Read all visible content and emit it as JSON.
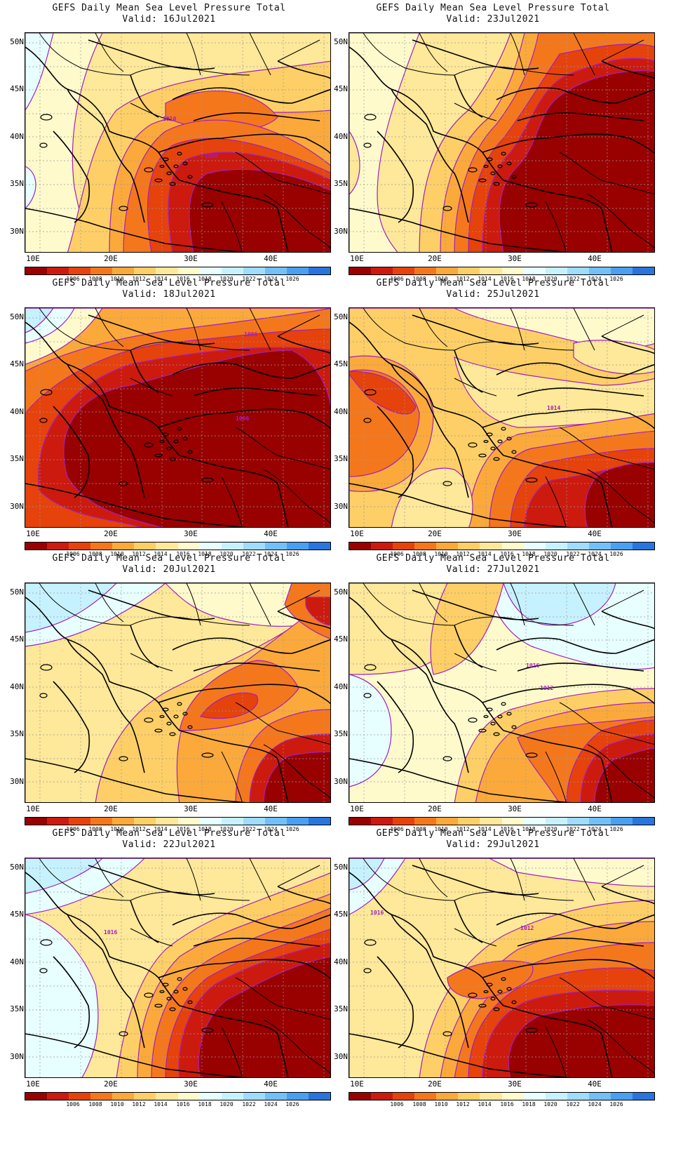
{
  "title": "GEFS Daily Mean Sea Level Pressure Total",
  "panels": [
    {
      "valid": "Valid: 16Jul2021",
      "contour_labels": [
        "1010",
        "1008"
      ]
    },
    {
      "valid": "Valid: 23Jul2021",
      "contour_labels": []
    },
    {
      "valid": "Valid: 18Jul2021",
      "contour_labels": [
        "1006",
        "1006"
      ]
    },
    {
      "valid": "Valid: 25Jul2021",
      "contour_labels": [
        "1014"
      ]
    },
    {
      "valid": "Valid: 20Jul2021",
      "contour_labels": []
    },
    {
      "valid": "Valid: 27Jul2021",
      "contour_labels": [
        "1016",
        "1012"
      ]
    },
    {
      "valid": "Valid: 22Jul2021",
      "contour_labels": [
        "1016"
      ]
    },
    {
      "valid": "Valid: 29Jul2021",
      "contour_labels": [
        "1016",
        "1012"
      ]
    }
  ],
  "lat_labels": [
    "50N",
    "45N",
    "40N",
    "35N",
    "30N"
  ],
  "lon_labels": [
    "10E",
    "20E",
    "30E",
    "40E"
  ],
  "colorbar": {
    "colors": [
      "#990000",
      "#cc1a0e",
      "#e6420c",
      "#f5771c",
      "#fba93b",
      "#fdcf66",
      "#fee899",
      "#fffacc",
      "#e8ffff",
      "#c6f2ff",
      "#9fdcfd",
      "#72c0f7",
      "#4a9ff0",
      "#2a74dd"
    ],
    "labels": [
      "1006",
      "1008",
      "1010",
      "1012",
      "1014",
      "1016",
      "1018",
      "1020",
      "1022",
      "1024",
      "1026"
    ]
  }
}
